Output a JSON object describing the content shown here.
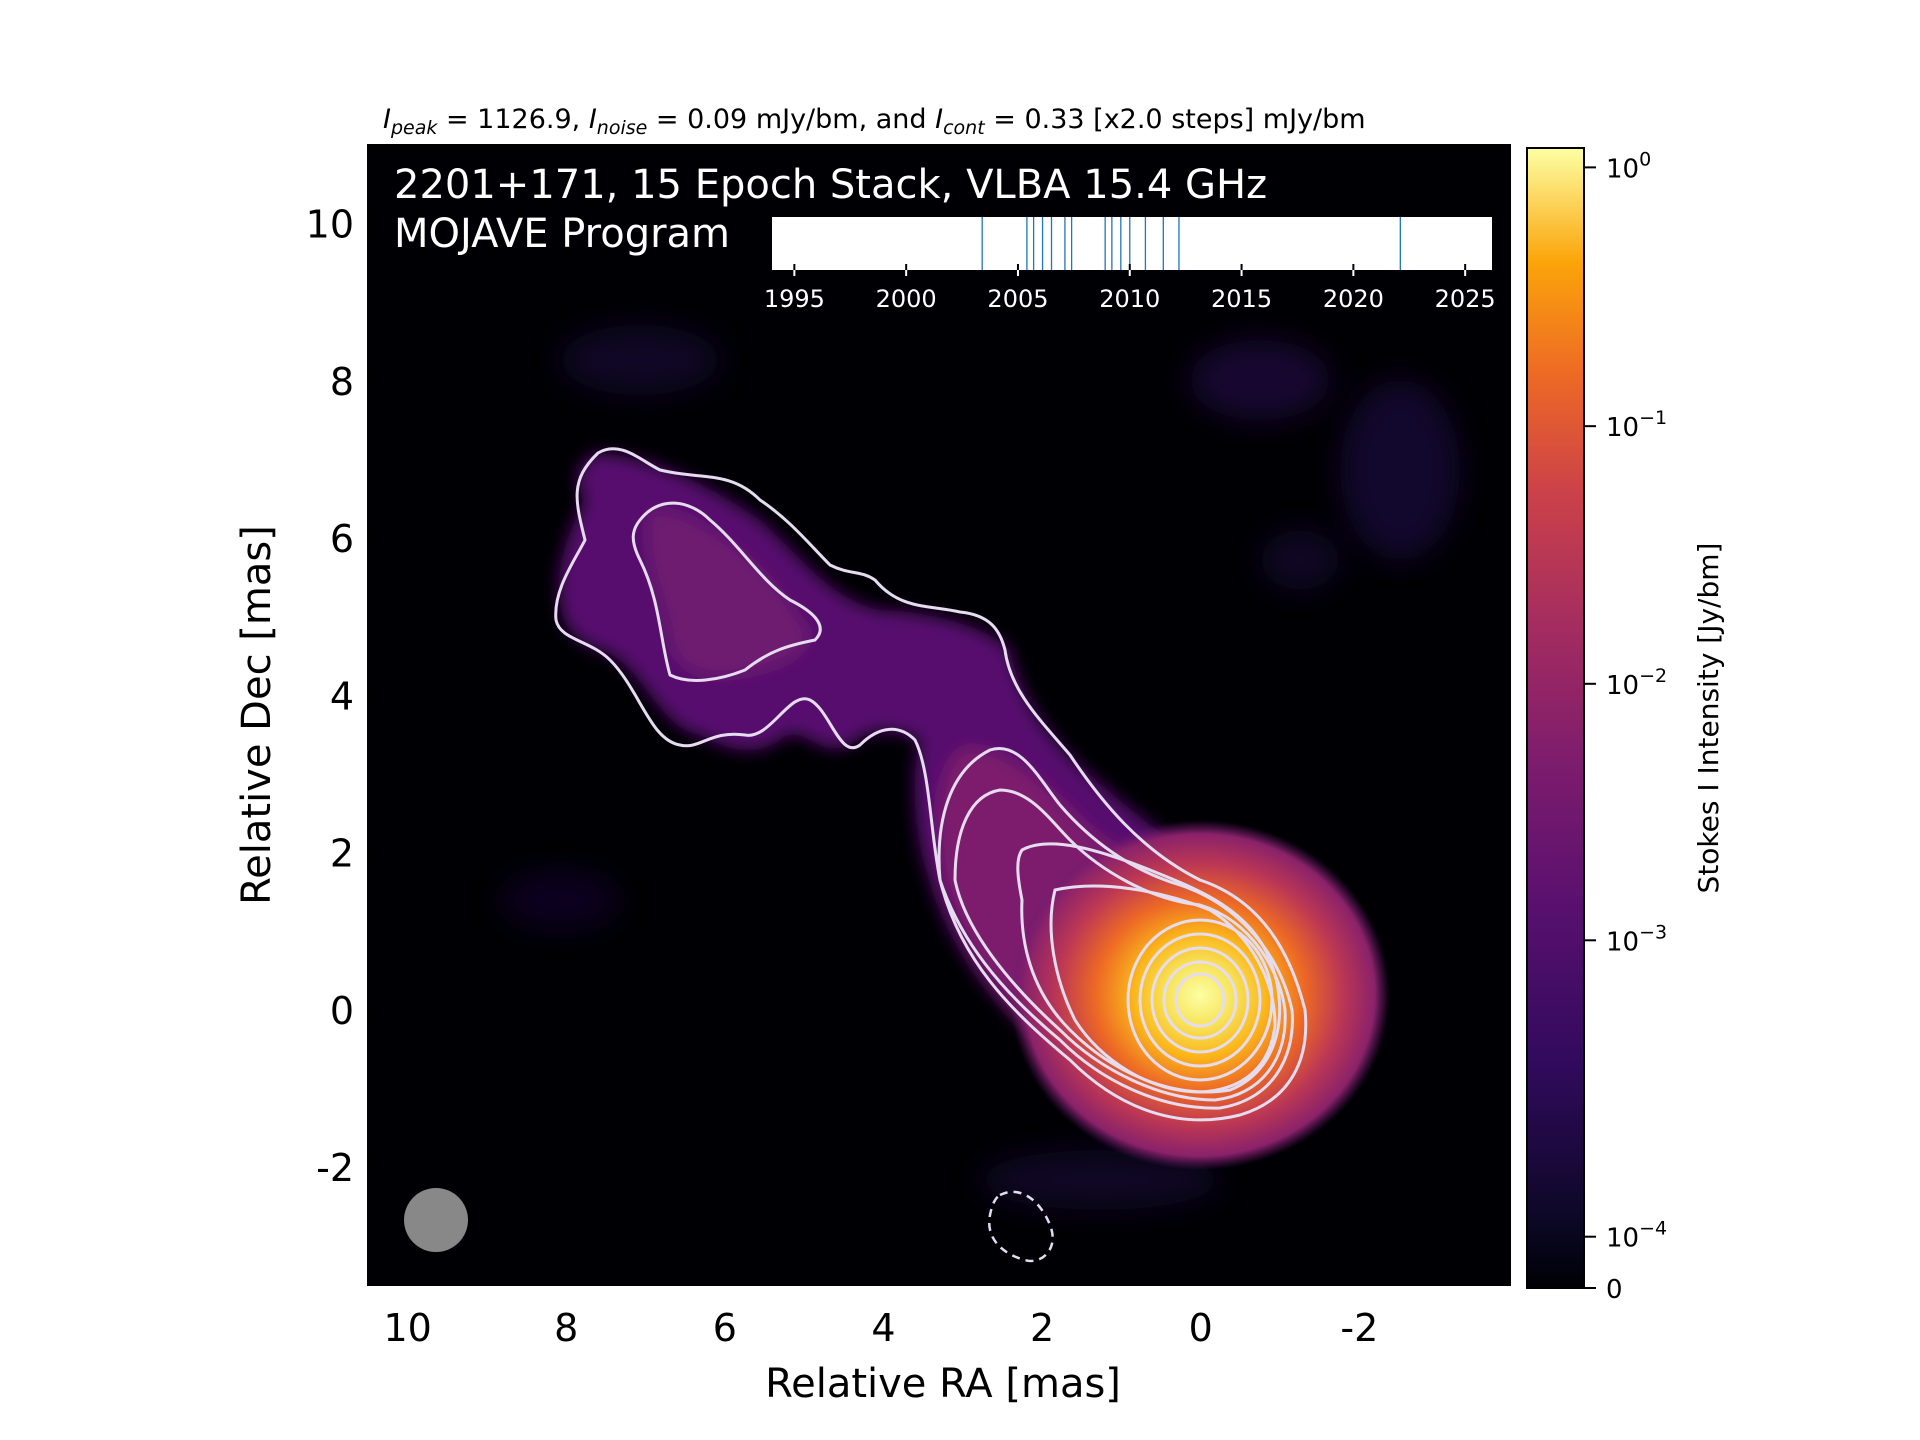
{
  "chart_data": {
    "type": "heatmap",
    "title_parts": {
      "peak_sym": "I",
      "peak_sub": "peak",
      "peak_val": " = 1126.9, ",
      "noise_sym": "I",
      "noise_sub": "noise",
      "noise_val": " = 0.09 mJy/bm, and ",
      "cont_sym": "I",
      "cont_sub": "cont",
      "cont_val": " = 0.33 [x2.0 steps] mJy/bm"
    },
    "overlay_line1": "2201+171, 15 Epoch Stack, VLBA 15.4 GHz",
    "overlay_line2": "MOJAVE Program",
    "xlabel": "Relative RA [mas]",
    "ylabel": "Relative Dec [mas]",
    "xlim": [
      10.5,
      -3.9
    ],
    "ylim": [
      -3.5,
      11.0
    ],
    "xticks": [
      {
        "v": 10,
        "label": "10"
      },
      {
        "v": 8,
        "label": "8"
      },
      {
        "v": 6,
        "label": "6"
      },
      {
        "v": 4,
        "label": "4"
      },
      {
        "v": 2,
        "label": "2"
      },
      {
        "v": 0,
        "label": "0"
      },
      {
        "v": -2,
        "label": "-2"
      }
    ],
    "yticks": [
      {
        "v": 10,
        "label": "10"
      },
      {
        "v": 8,
        "label": "8"
      },
      {
        "v": 6,
        "label": "6"
      },
      {
        "v": 4,
        "label": "4"
      },
      {
        "v": 2,
        "label": "2"
      },
      {
        "v": 0,
        "label": "0"
      },
      {
        "v": -2,
        "label": "-2"
      }
    ],
    "colormap": "inferno",
    "colorbar": {
      "label": "Stokes I Intensity [Jy/bm]",
      "scale": "log",
      "ticks": [
        {
          "base": "10",
          "exp": "0",
          "frac": 0.983
        },
        {
          "base": "10",
          "exp": "−1",
          "frac": 0.756
        },
        {
          "base": "10",
          "exp": "−2",
          "frac": 0.53
        },
        {
          "base": "10",
          "exp": "−3",
          "frac": 0.305
        },
        {
          "base": "10",
          "exp": "−4",
          "frac": 0.045
        },
        {
          "base": "0",
          "exp": "",
          "frac": 0.0
        }
      ]
    },
    "core_position": [
      0,
      0
    ],
    "beam_color": "#888888",
    "contour_color": "#e6dcf0",
    "timeline": {
      "xlim": [
        1994,
        2026.2
      ],
      "ticks": [
        {
          "v": 1995,
          "label": "1995"
        },
        {
          "v": 2000,
          "label": "2000"
        },
        {
          "v": 2005,
          "label": "2005"
        },
        {
          "v": 2010,
          "label": "2010"
        },
        {
          "v": 2015,
          "label": "2015"
        },
        {
          "v": 2020,
          "label": "2020"
        },
        {
          "v": 2025,
          "label": "2025"
        }
      ],
      "epochs": [
        2003.4,
        2005.4,
        2005.7,
        2006.1,
        2006.5,
        2007.1,
        2007.4,
        2008.9,
        2009.2,
        2009.6,
        2010.0,
        2010.7,
        2011.5,
        2012.2,
        2022.1
      ],
      "epoch_color": "#1f77b4"
    }
  }
}
